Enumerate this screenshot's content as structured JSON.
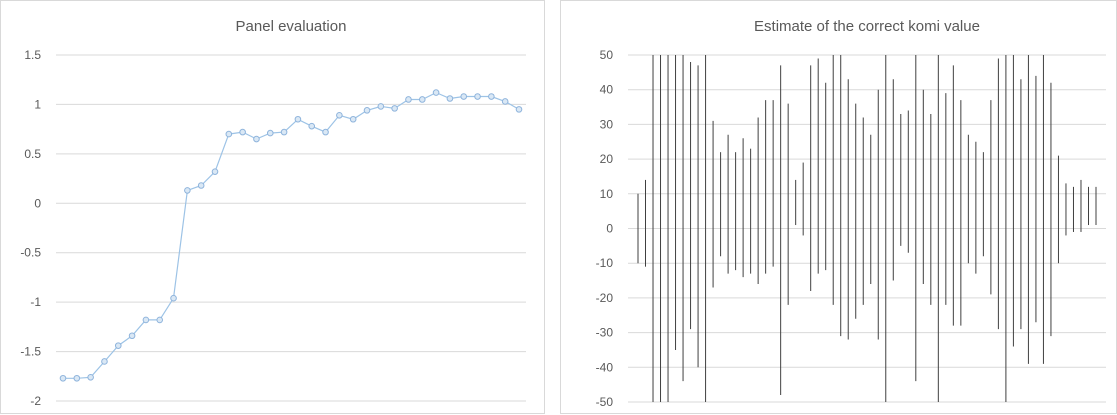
{
  "chart_data": [
    {
      "type": "line",
      "title": "Panel evaluation",
      "xlabel": "",
      "ylabel": "",
      "ylim": [
        -2,
        1.5
      ],
      "y_ticks": [
        "1.5",
        "1",
        "0.5",
        "0",
        "-0.5",
        "-1",
        "-1.5",
        "-2"
      ],
      "y_tick_values": [
        1.5,
        1,
        0.5,
        0,
        -0.5,
        -1,
        -1.5,
        -2
      ],
      "grid": true,
      "legend": "none",
      "series": [
        {
          "color": "#9dc3e6",
          "values": [
            -1.77,
            -1.77,
            -1.76,
            -1.6,
            -1.44,
            -1.34,
            -1.18,
            -1.18,
            -0.96,
            0.13,
            0.18,
            0.32,
            0.7,
            0.72,
            0.65,
            0.71,
            0.72,
            0.85,
            0.78,
            0.72,
            0.89,
            0.85,
            0.94,
            0.98,
            0.96,
            1.05,
            1.05,
            1.12,
            1.06,
            1.08,
            1.08,
            1.08,
            1.03,
            0.95
          ]
        }
      ]
    },
    {
      "type": "error-bar",
      "title": "Estimate of the correct komi value",
      "xlabel": "",
      "ylabel": "",
      "ylim": [
        -50,
        50
      ],
      "y_ticks": [
        "50",
        "40",
        "30",
        "20",
        "10",
        "0",
        "-10",
        "-20",
        "-30",
        "-40",
        "-50"
      ],
      "y_tick_values": [
        50,
        40,
        30,
        20,
        10,
        0,
        -10,
        -20,
        -30,
        -40,
        -50
      ],
      "grid": true,
      "legend": "none",
      "color": "#404040",
      "ranges": [
        [
          -10,
          10
        ],
        [
          -11,
          14
        ],
        [
          -50,
          50
        ],
        [
          -50,
          50
        ],
        [
          -50,
          50
        ],
        [
          -35,
          50
        ],
        [
          -44,
          50
        ],
        [
          -29,
          48
        ],
        [
          -40,
          47
        ],
        [
          -50,
          50
        ],
        [
          -17,
          31
        ],
        [
          -8,
          22
        ],
        [
          -13,
          27
        ],
        [
          -12,
          22
        ],
        [
          -14,
          26
        ],
        [
          -13,
          23
        ],
        [
          -16,
          32
        ],
        [
          -13,
          37
        ],
        [
          -11,
          37
        ],
        [
          -48,
          47
        ],
        [
          -22,
          36
        ],
        [
          1,
          14
        ],
        [
          -2,
          19
        ],
        [
          -18,
          47
        ],
        [
          -13,
          49
        ],
        [
          -12,
          42
        ],
        [
          -22,
          50
        ],
        [
          -31,
          50
        ],
        [
          -32,
          43
        ],
        [
          -26,
          36
        ],
        [
          -22,
          32
        ],
        [
          -16,
          27
        ],
        [
          -32,
          40
        ],
        [
          -50,
          50
        ],
        [
          -15,
          43
        ],
        [
          -5,
          33
        ],
        [
          -7,
          34
        ],
        [
          -44,
          50
        ],
        [
          -16,
          40
        ],
        [
          -22,
          33
        ],
        [
          -50,
          50
        ],
        [
          -22,
          39
        ],
        [
          -28,
          47
        ],
        [
          -28,
          37
        ],
        [
          -10,
          27
        ],
        [
          -13,
          25
        ],
        [
          -8,
          22
        ],
        [
          -19,
          37
        ],
        [
          -29,
          49
        ],
        [
          -50,
          50
        ],
        [
          -34,
          50
        ],
        [
          -29,
          43
        ],
        [
          -39,
          50
        ],
        [
          -27,
          44
        ],
        [
          -39,
          50
        ],
        [
          -31,
          42
        ],
        [
          -10,
          21
        ],
        [
          -2,
          13
        ],
        [
          -1,
          12
        ],
        [
          -1,
          14
        ],
        [
          1,
          12
        ],
        [
          1,
          12
        ]
      ]
    }
  ]
}
